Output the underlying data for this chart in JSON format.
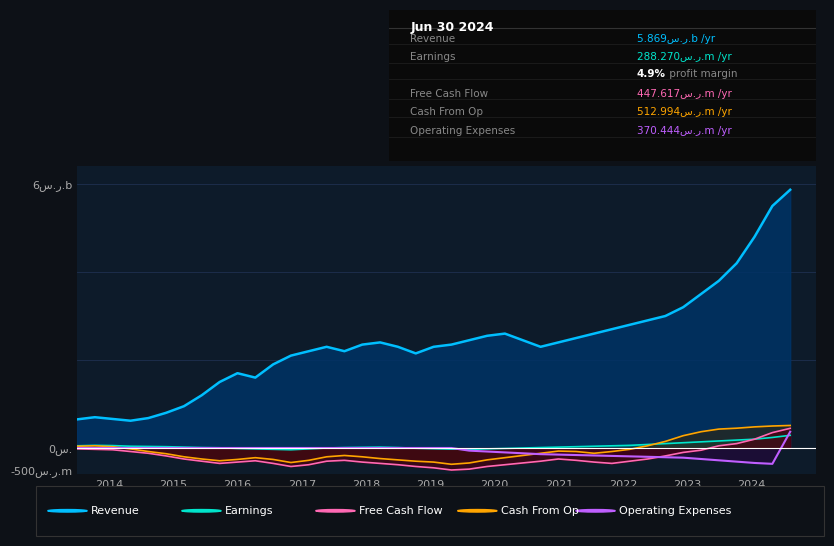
{
  "bg_color": "#0d1117",
  "plot_bg_color": "#0d1b2a",
  "grid_color": "#1e3050",
  "title_date": "Jun 30 2024",
  "table": {
    "Revenue": {
      "value": "5.869س.ر.b /yr",
      "color": "#00bfff"
    },
    "Earnings": {
      "value": "288.270س.ر.m /yr",
      "color": "#00e5cc"
    },
    "profit_margin": {
      "value": "4.9% profit margin",
      "color": "#ffffff"
    },
    "Free Cash Flow": {
      "value": "447.617س.ر.m /yr",
      "color": "#ff69b4"
    },
    "Cash From Op": {
      "value": "512.994س.ر.m /yr",
      "color": "#ffa500"
    },
    "Operating Expenses": {
      "value": "370.444س.ر.m /yr",
      "color": "#bf5fff"
    }
  },
  "ylabel_top": "6س.ر.b",
  "ylabel_zero": "0س.",
  "ylabel_neg": "-500س.ر.m",
  "x_ticks": [
    2014,
    2015,
    2016,
    2017,
    2018,
    2019,
    2020,
    2021,
    2022,
    2023,
    2024
  ],
  "legend": [
    {
      "label": "Revenue",
      "color": "#00bfff"
    },
    {
      "label": "Earnings",
      "color": "#00e5cc"
    },
    {
      "label": "Free Cash Flow",
      "color": "#ff69b4"
    },
    {
      "label": "Cash From Op",
      "color": "#ffa500"
    },
    {
      "label": "Operating Expenses",
      "color": "#bf5fff"
    }
  ],
  "revenue": [
    650,
    700,
    660,
    620,
    680,
    800,
    950,
    1200,
    1500,
    1700,
    1600,
    1900,
    2100,
    2200,
    2300,
    2200,
    2350,
    2400,
    2300,
    2150,
    2300,
    2350,
    2450,
    2550,
    2600,
    2450,
    2300,
    2400,
    2500,
    2600,
    2700,
    2800,
    2900,
    3000,
    3200,
    3500,
    3800,
    4200,
    4800,
    5500,
    5869
  ],
  "earnings": [
    50,
    60,
    55,
    40,
    35,
    30,
    20,
    10,
    5,
    -10,
    -20,
    -30,
    -40,
    -20,
    0,
    10,
    15,
    20,
    10,
    -5,
    -15,
    -25,
    -30,
    -20,
    -10,
    0,
    10,
    20,
    30,
    40,
    50,
    60,
    80,
    100,
    120,
    140,
    160,
    180,
    200,
    240,
    288
  ],
  "free_cash_flow": [
    -20,
    -30,
    -40,
    -80,
    -120,
    -180,
    -250,
    -300,
    -350,
    -320,
    -290,
    -350,
    -420,
    -380,
    -300,
    -280,
    -320,
    -350,
    -380,
    -420,
    -450,
    -500,
    -480,
    -420,
    -380,
    -340,
    -300,
    -250,
    -280,
    -320,
    -350,
    -300,
    -250,
    -180,
    -100,
    -50,
    50,
    100,
    200,
    350,
    447
  ],
  "cash_from_op": [
    40,
    50,
    30,
    -20,
    -80,
    -130,
    -200,
    -250,
    -290,
    -260,
    -220,
    -260,
    -330,
    -280,
    -200,
    -170,
    -200,
    -240,
    -270,
    -300,
    -320,
    -370,
    -340,
    -270,
    -220,
    -170,
    -120,
    -70,
    -80,
    -120,
    -80,
    -30,
    50,
    150,
    280,
    370,
    430,
    450,
    480,
    500,
    512
  ],
  "op_expenses": [
    0,
    0,
    0,
    0,
    0,
    0,
    0,
    0,
    0,
    0,
    0,
    0,
    0,
    0,
    0,
    0,
    0,
    0,
    0,
    0,
    0,
    0,
    -60,
    -80,
    -100,
    -120,
    -140,
    -150,
    -160,
    -170,
    -180,
    -190,
    -200,
    -210,
    -220,
    -250,
    -280,
    -310,
    -340,
    -360,
    370
  ],
  "revenue_color": "#00bfff",
  "revenue_fill": "#003366",
  "earnings_color": "#00e5cc",
  "free_cash_flow_color": "#ff69b4",
  "cash_from_op_color": "#ffa500",
  "op_expenses_color": "#bf5fff"
}
